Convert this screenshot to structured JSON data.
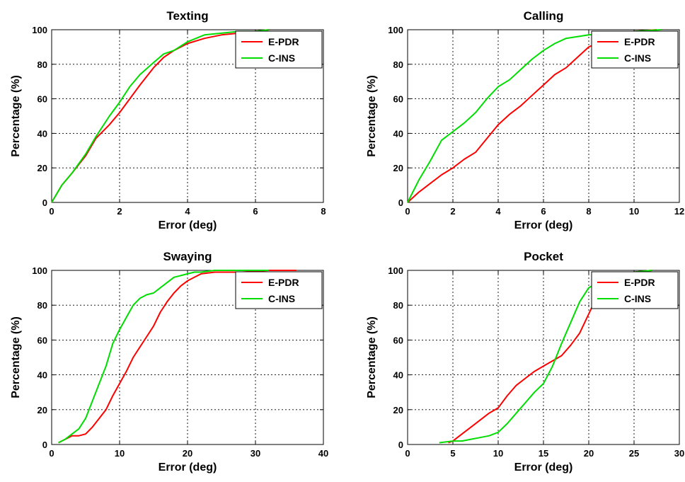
{
  "chart_data": [
    {
      "type": "line",
      "title": "Texting",
      "xlabel": "Error (deg)",
      "ylabel": "Percentage (%)",
      "xlim": [
        0,
        8
      ],
      "ylim": [
        0,
        100
      ],
      "xticks": [
        0,
        2,
        4,
        6,
        8
      ],
      "yticks": [
        0,
        20,
        40,
        60,
        80,
        100
      ],
      "grid": true,
      "legend_position": "top-right",
      "series": [
        {
          "name": "E-PDR",
          "color": "#ff0000",
          "x": [
            0,
            0.3,
            0.6,
            1.0,
            1.3,
            1.7,
            2.0,
            2.3,
            2.6,
            3.0,
            3.3,
            3.6,
            4.0,
            4.5,
            5.0,
            5.5,
            6.0,
            6.4
          ],
          "y": [
            0,
            10,
            17,
            27,
            37,
            45,
            52,
            60,
            68,
            78,
            84,
            88,
            92,
            95,
            97,
            98,
            99,
            100
          ]
        },
        {
          "name": "C-INS",
          "color": "#00dd00",
          "x": [
            0,
            0.3,
            0.6,
            1.0,
            1.3,
            1.7,
            2.0,
            2.3,
            2.6,
            3.0,
            3.3,
            3.6,
            4.0,
            4.5,
            5.0,
            5.5,
            6.0,
            6.4
          ],
          "y": [
            0,
            10,
            17,
            28,
            38,
            50,
            58,
            67,
            74,
            81,
            86,
            88,
            93,
            97,
            98,
            99,
            99,
            100
          ]
        }
      ]
    },
    {
      "type": "line",
      "title": "Calling",
      "xlabel": "Error (deg)",
      "ylabel": "Percentage (%)",
      "xlim": [
        0,
        12
      ],
      "ylim": [
        0,
        100
      ],
      "xticks": [
        0,
        2,
        4,
        6,
        8,
        10,
        12
      ],
      "yticks": [
        0,
        20,
        40,
        60,
        80,
        100
      ],
      "grid": true,
      "legend_position": "top-right",
      "series": [
        {
          "name": "E-PDR",
          "color": "#ff0000",
          "x": [
            0,
            0.5,
            1.0,
            1.5,
            2.0,
            2.5,
            3.0,
            3.5,
            4.0,
            4.5,
            5.0,
            5.5,
            6.0,
            6.5,
            7.0,
            7.5,
            8.0,
            8.5,
            9.0,
            10.0,
            11.0
          ],
          "y": [
            0,
            6,
            11,
            16,
            20,
            25,
            29,
            37,
            45,
            51,
            56,
            62,
            68,
            74,
            78,
            84,
            90,
            93,
            96,
            99,
            100
          ]
        },
        {
          "name": "C-INS",
          "color": "#00dd00",
          "x": [
            0,
            0.5,
            1.0,
            1.5,
            2.0,
            2.5,
            3.0,
            3.5,
            4.0,
            4.5,
            5.0,
            5.5,
            6.0,
            6.5,
            7.0,
            7.5,
            8.0,
            9.0,
            10.0,
            11.2
          ],
          "y": [
            0,
            13,
            24,
            36,
            41,
            46,
            52,
            60,
            67,
            71,
            77,
            83,
            88,
            92,
            95,
            96,
            97,
            98,
            99,
            100
          ]
        }
      ]
    },
    {
      "type": "line",
      "title": "Swaying",
      "xlabel": "Error (deg)",
      "ylabel": "Percentage (%)",
      "xlim": [
        0,
        40
      ],
      "ylim": [
        0,
        100
      ],
      "xticks": [
        0,
        10,
        20,
        30,
        40
      ],
      "yticks": [
        0,
        20,
        40,
        60,
        80,
        100
      ],
      "grid": true,
      "legend_position": "top-right",
      "series": [
        {
          "name": "E-PDR",
          "color": "#ff0000",
          "x": [
            1,
            2,
            3,
            4,
            5,
            6,
            7,
            8,
            9,
            10,
            11,
            12,
            13,
            14,
            15,
            16,
            17,
            18,
            19,
            20,
            21,
            22,
            24,
            28,
            32,
            36
          ],
          "y": [
            1,
            3,
            5,
            5,
            6,
            10,
            15,
            20,
            28,
            35,
            42,
            50,
            56,
            62,
            68,
            76,
            82,
            87,
            91,
            94,
            96,
            98,
            99,
            99,
            100,
            100
          ]
        },
        {
          "name": "C-INS",
          "color": "#00dd00",
          "x": [
            1,
            2,
            3,
            4,
            5,
            6,
            7,
            8,
            9,
            10,
            11,
            12,
            13,
            14,
            15,
            16,
            17,
            18,
            19,
            20,
            21,
            22,
            24,
            28,
            32
          ],
          "y": [
            1,
            3,
            6,
            9,
            15,
            25,
            35,
            45,
            58,
            66,
            73,
            80,
            84,
            86,
            87,
            90,
            93,
            96,
            97,
            98,
            99,
            99,
            100,
            100,
            100
          ]
        }
      ]
    },
    {
      "type": "line",
      "title": "Pocket",
      "xlabel": "Error (deg)",
      "ylabel": "Percentage (%)",
      "xlim": [
        0,
        30
      ],
      "ylim": [
        0,
        100
      ],
      "xticks": [
        0,
        5,
        10,
        15,
        20,
        25,
        30
      ],
      "yticks": [
        0,
        20,
        40,
        60,
        80,
        100
      ],
      "grid": true,
      "legend_position": "top-right",
      "series": [
        {
          "name": "E-PDR",
          "color": "#ff0000",
          "x": [
            4.5,
            5.0,
            6.0,
            7.0,
            8.0,
            9.0,
            10.0,
            11.0,
            12.0,
            13.0,
            14.0,
            15.0,
            16.0,
            17.0,
            18.0,
            19.0,
            20.0,
            21.0,
            22.0,
            23.0,
            25.0,
            27.0
          ],
          "y": [
            1,
            2,
            6,
            10,
            14,
            18,
            21,
            28,
            34,
            38,
            42,
            45,
            48,
            51,
            57,
            64,
            75,
            86,
            93,
            97,
            99,
            100
          ]
        },
        {
          "name": "C-INS",
          "color": "#00dd00",
          "x": [
            3.5,
            5.0,
            6.0,
            7.0,
            8.0,
            9.0,
            10.0,
            11.0,
            12.0,
            13.0,
            14.0,
            15.0,
            16.0,
            17.0,
            18.0,
            19.0,
            20.0,
            21.0,
            22.0,
            23.0,
            24.0,
            25.0,
            27.0
          ],
          "y": [
            1,
            2,
            2,
            3,
            4,
            5,
            7,
            12,
            18,
            24,
            30,
            35,
            45,
            58,
            70,
            82,
            90,
            93,
            95,
            96,
            98,
            99,
            100
          ]
        }
      ]
    }
  ]
}
